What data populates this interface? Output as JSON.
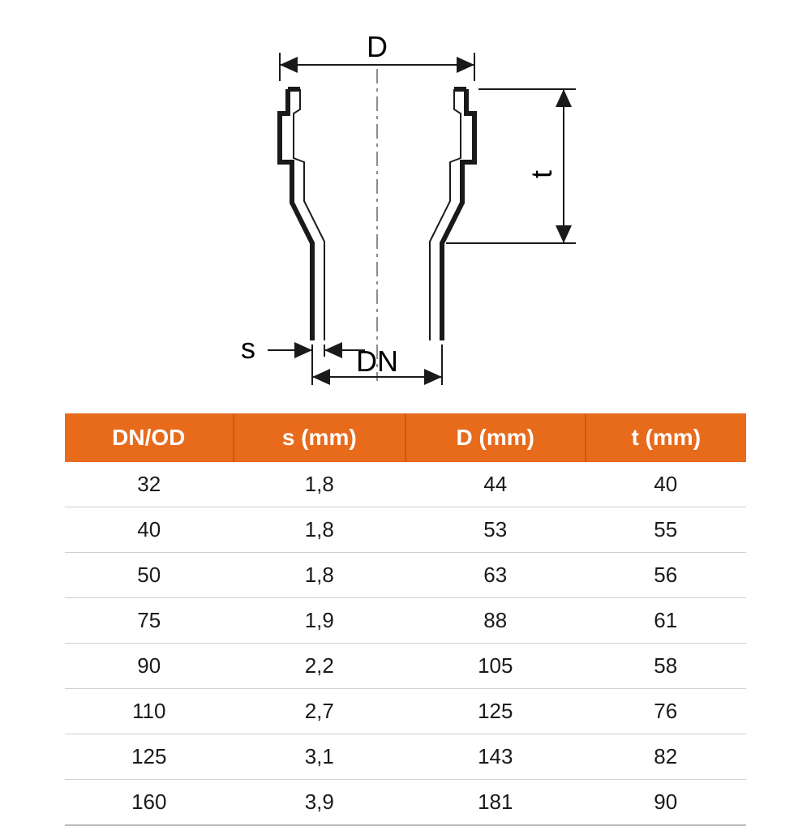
{
  "diagram": {
    "labels": {
      "D": "D",
      "t": "t",
      "s": "s",
      "DN": "DN"
    },
    "stroke_color": "#1a1a1a",
    "stroke_width_thick": 6,
    "stroke_width_thin": 2,
    "stroke_width_dim": 2,
    "label_fontsize": 36
  },
  "table": {
    "type": "table",
    "header_bg": "#e86b1c",
    "header_text_color": "#ffffff",
    "header_divider_color": "#cc5a10",
    "row_border_color": "#cfcfcf",
    "header_fontsize": 28,
    "cell_fontsize": 26,
    "columns": [
      "DN/OD",
      "s (mm)",
      "D (mm)",
      "t (mm)"
    ],
    "rows": [
      [
        "32",
        "1,8",
        "44",
        "40"
      ],
      [
        "40",
        "1,8",
        "53",
        "55"
      ],
      [
        "50",
        "1,8",
        "63",
        "56"
      ],
      [
        "75",
        "1,9",
        "88",
        "61"
      ],
      [
        "90",
        "2,2",
        "105",
        "58"
      ],
      [
        "110",
        "2,7",
        "125",
        "76"
      ],
      [
        "125",
        "3,1",
        "143",
        "82"
      ],
      [
        "160",
        "3,9",
        "181",
        "90"
      ]
    ]
  }
}
